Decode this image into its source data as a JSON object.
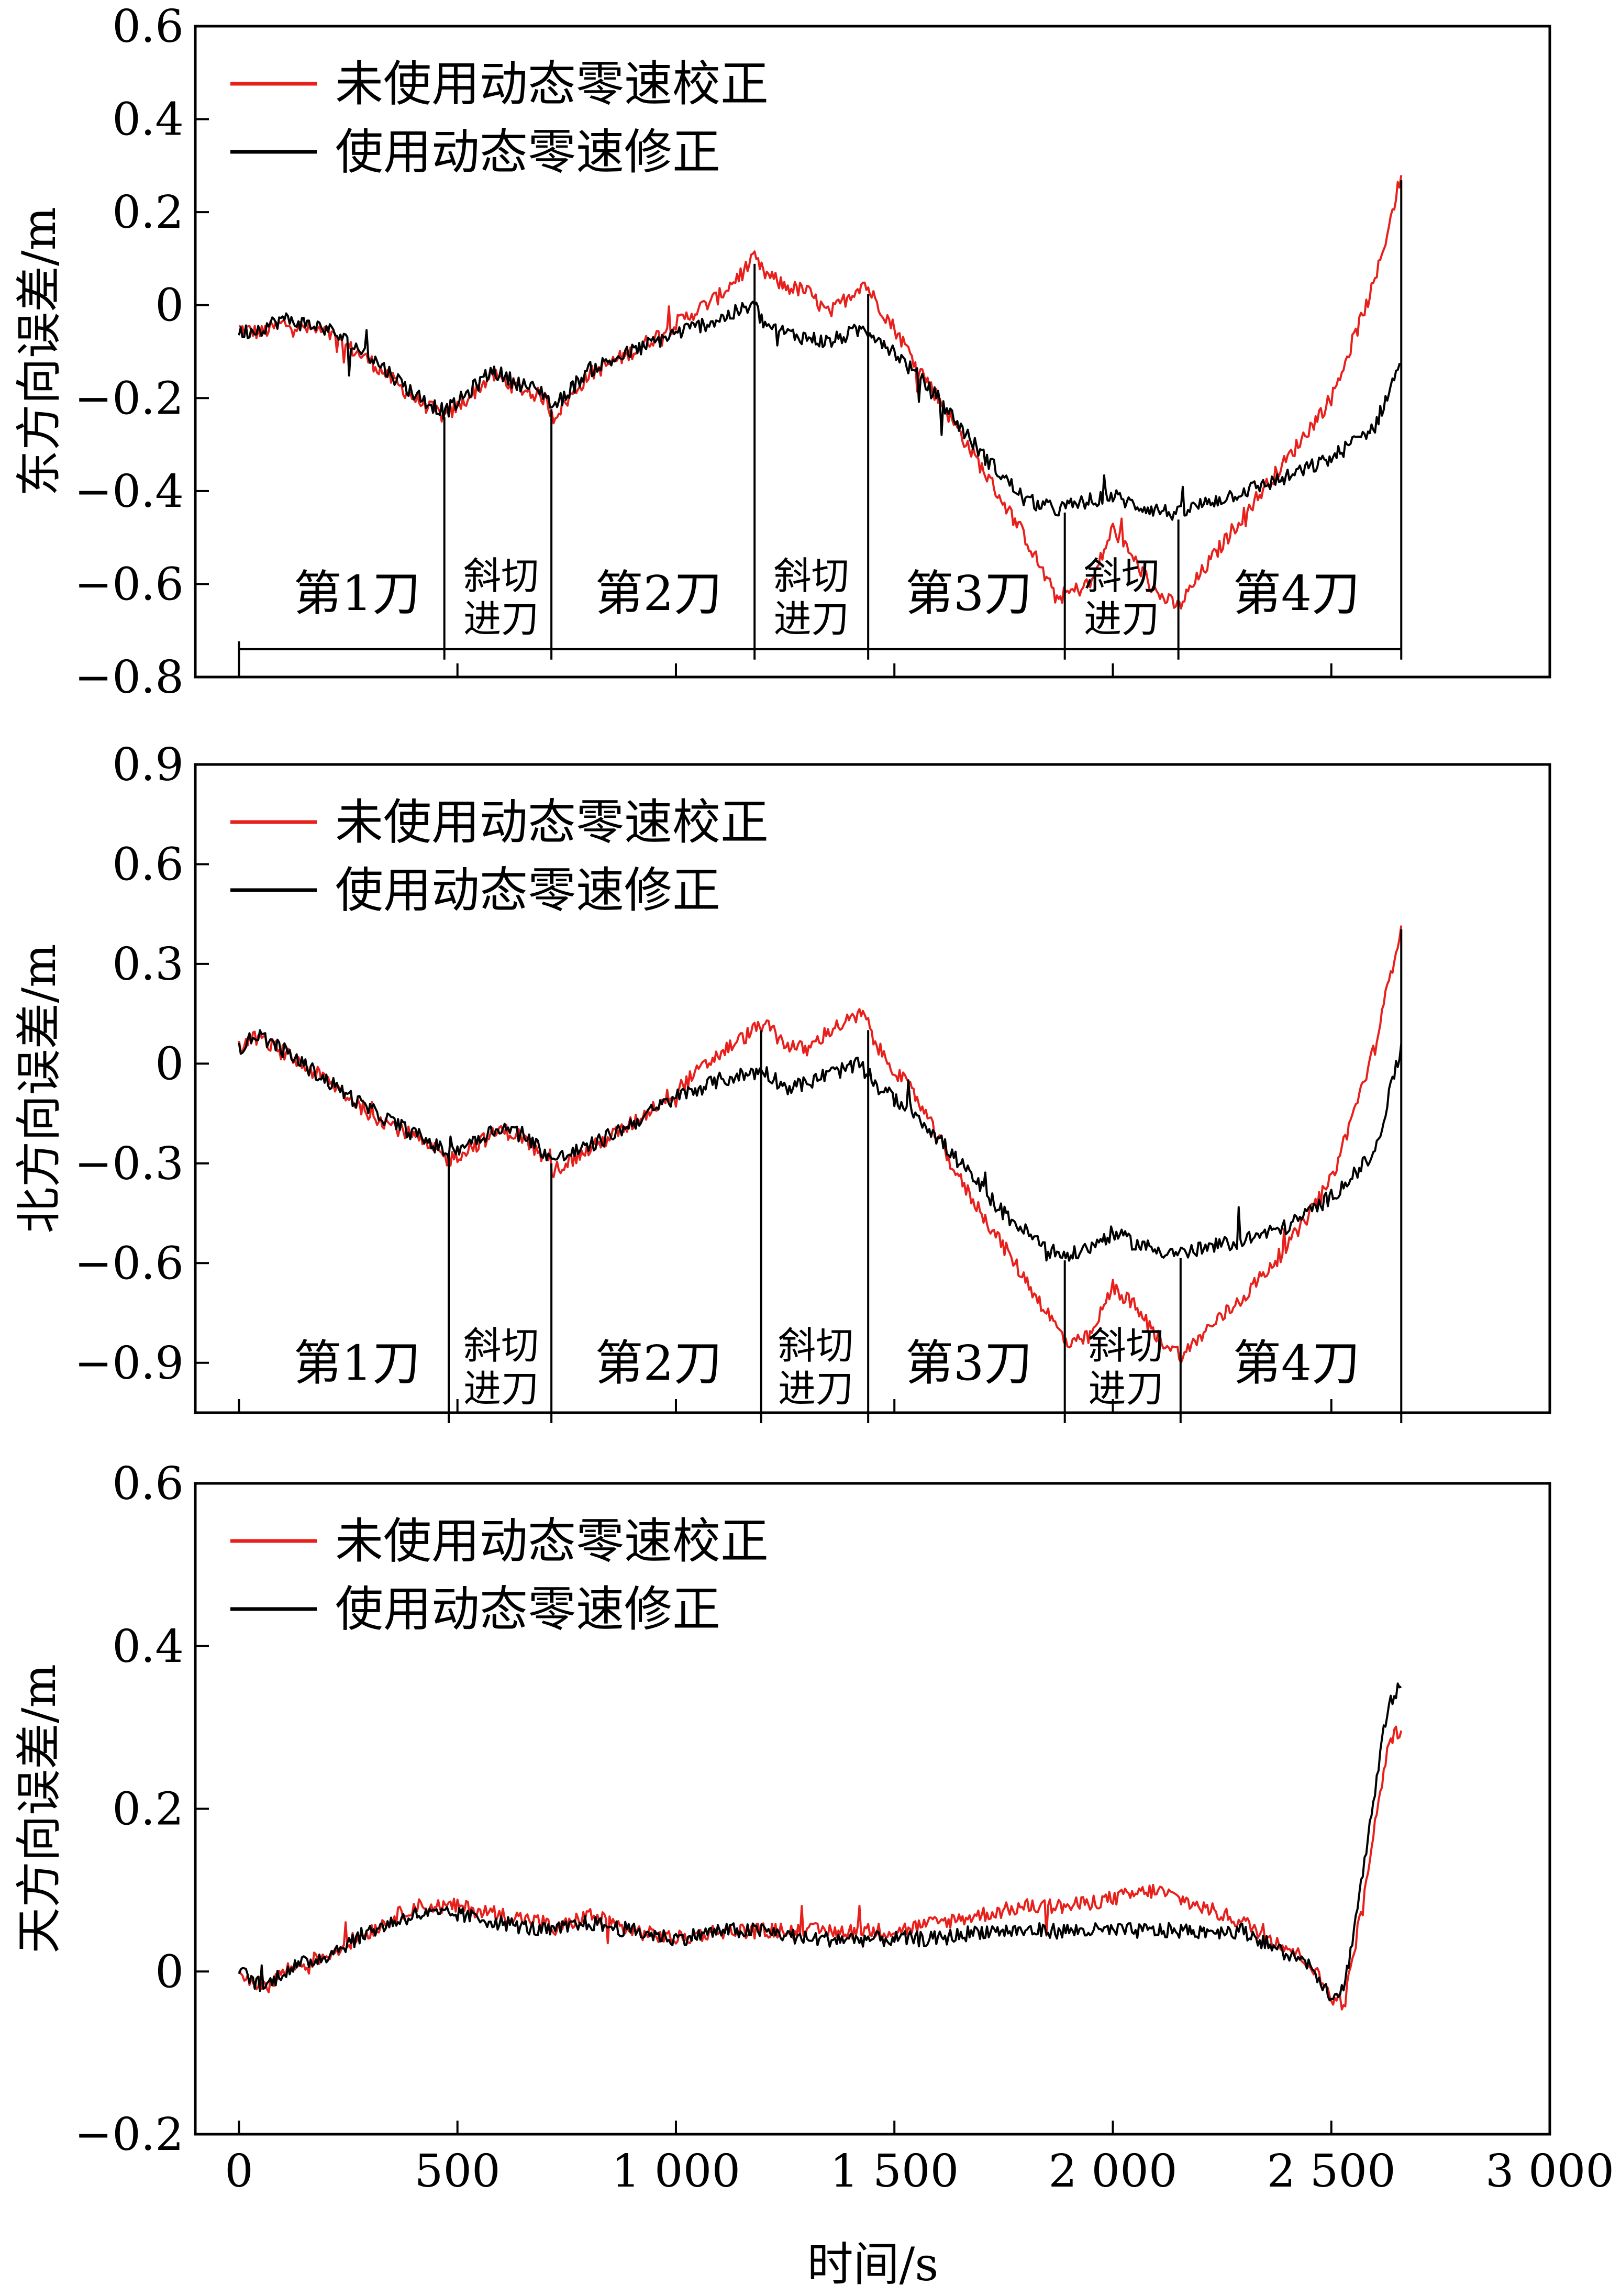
{
  "x_axis": {
    "label": "时间/s",
    "range": [
      -100,
      3000
    ],
    "ticks": [
      0,
      500,
      1000,
      1500,
      2000,
      2500,
      3000
    ],
    "tick_labels": [
      "0",
      "500",
      "1 000",
      "1 500",
      "2 000",
      "2 500",
      "3 000"
    ]
  },
  "legend": {
    "placement": "top-left",
    "items": [
      {
        "label": "未使用动态零速校正",
        "color": "#e8201c"
      },
      {
        "label": "使用动态零速修正",
        "color": "#000000"
      }
    ]
  },
  "chart_data": [
    {
      "type": "line",
      "ylabel": "东方向误差/m",
      "ylim": [
        -0.8,
        0.6
      ],
      "yticks": [
        -0.8,
        -0.6,
        -0.4,
        -0.2,
        0,
        0.2,
        0.4,
        0.6
      ],
      "ytick_labels": [
        "−0.8",
        "−0.6",
        "−0.4",
        "−0.2",
        "0",
        "0.2",
        "0.4",
        "0.6"
      ],
      "series": [
        {
          "name": "未使用动态零速校正",
          "color": "#e8201c",
          "x": [
            0,
            50,
            100,
            200,
            300,
            400,
            470,
            500,
            580,
            620,
            700,
            720,
            800,
            900,
            1000,
            1100,
            1180,
            1200,
            1250,
            1300,
            1350,
            1430,
            1450,
            1500,
            1600,
            1700,
            1800,
            1870,
            1950,
            2000,
            2050,
            2100,
            2150,
            2200,
            2300,
            2400,
            2500,
            2600,
            2660
          ],
          "y": [
            -0.05,
            -0.06,
            -0.04,
            -0.06,
            -0.12,
            -0.2,
            -0.24,
            -0.22,
            -0.15,
            -0.17,
            -0.2,
            -0.24,
            -0.15,
            -0.1,
            -0.04,
            0.02,
            0.1,
            0.07,
            0.04,
            0.03,
            -0.02,
            0.05,
            0.02,
            -0.05,
            -0.2,
            -0.35,
            -0.5,
            -0.63,
            -0.6,
            -0.48,
            -0.55,
            -0.62,
            -0.65,
            -0.58,
            -0.45,
            -0.33,
            -0.2,
            0.05,
            0.28
          ]
        },
        {
          "name": "使用动态零速修正",
          "color": "#000000",
          "x": [
            0,
            50,
            100,
            200,
            300,
            400,
            470,
            500,
            580,
            620,
            700,
            720,
            800,
            900,
            1000,
            1100,
            1180,
            1200,
            1250,
            1300,
            1350,
            1430,
            1450,
            1500,
            1600,
            1700,
            1800,
            1870,
            1950,
            2000,
            2050,
            2100,
            2150,
            2200,
            2300,
            2400,
            2500,
            2600,
            2660
          ],
          "y": [
            -0.06,
            -0.05,
            -0.03,
            -0.05,
            -0.11,
            -0.19,
            -0.23,
            -0.21,
            -0.14,
            -0.16,
            -0.19,
            -0.22,
            -0.14,
            -0.1,
            -0.06,
            -0.03,
            0.0,
            -0.04,
            -0.06,
            -0.07,
            -0.08,
            -0.05,
            -0.06,
            -0.1,
            -0.2,
            -0.32,
            -0.42,
            -0.44,
            -0.42,
            -0.41,
            -0.43,
            -0.44,
            -0.45,
            -0.43,
            -0.4,
            -0.37,
            -0.33,
            -0.26,
            -0.12
          ]
        }
      ],
      "phase_boundaries": [
        470,
        715,
        1180,
        1440,
        1890,
        2150,
        2660
      ],
      "phase_labels": [
        {
          "lines": [
            "第1刀"
          ],
          "x": 270,
          "y": -0.62
        },
        {
          "lines": [
            "斜切",
            "进刀"
          ],
          "x": 600,
          "y": -0.62
        },
        {
          "lines": [
            "第2刀"
          ],
          "x": 960,
          "y": -0.62
        },
        {
          "lines": [
            "斜切",
            "进刀"
          ],
          "x": 1310,
          "y": -0.62
        },
        {
          "lines": [
            "第3刀"
          ],
          "x": 1670,
          "y": -0.62
        },
        {
          "lines": [
            "斜切",
            "进刀"
          ],
          "x": 2020,
          "y": -0.62
        },
        {
          "lines": [
            "第4刀"
          ],
          "x": 2420,
          "y": -0.62
        }
      ],
      "baseline_y": -0.74
    },
    {
      "type": "line",
      "ylabel": "北方向误差/m",
      "ylim": [
        -1.05,
        0.9
      ],
      "yticks": [
        -0.9,
        -0.6,
        -0.3,
        0,
        0.3,
        0.6,
        0.9
      ],
      "ytick_labels": [
        "−0.9",
        "−0.6",
        "−0.3",
        "0",
        "0.3",
        "0.6",
        "0.9"
      ],
      "series": [
        {
          "name": "未使用动态零速校正",
          "color": "#e8201c",
          "x": [
            0,
            40,
            80,
            200,
            300,
            400,
            480,
            520,
            600,
            650,
            720,
            800,
            900,
            1000,
            1100,
            1200,
            1250,
            1300,
            1350,
            1430,
            1460,
            1550,
            1650,
            1750,
            1850,
            1900,
            1950,
            2000,
            2050,
            2100,
            2160,
            2200,
            2300,
            2400,
            2500,
            2600,
            2660
          ],
          "y": [
            0.05,
            0.08,
            0.05,
            -0.05,
            -0.15,
            -0.22,
            -0.29,
            -0.26,
            -0.2,
            -0.22,
            -0.32,
            -0.26,
            -0.18,
            -0.08,
            0.03,
            0.12,
            0.06,
            0.04,
            0.1,
            0.15,
            0.05,
            -0.1,
            -0.35,
            -0.55,
            -0.75,
            -0.85,
            -0.82,
            -0.67,
            -0.73,
            -0.82,
            -0.88,
            -0.82,
            -0.7,
            -0.55,
            -0.35,
            0.05,
            0.42
          ]
        },
        {
          "name": "使用动态零速修正",
          "color": "#000000",
          "x": [
            0,
            40,
            80,
            200,
            300,
            400,
            480,
            520,
            600,
            650,
            720,
            800,
            900,
            1000,
            1100,
            1200,
            1250,
            1300,
            1350,
            1430,
            1460,
            1550,
            1650,
            1750,
            1850,
            1900,
            1950,
            2000,
            2050,
            2100,
            2160,
            2200,
            2300,
            2400,
            2500,
            2600,
            2660
          ],
          "y": [
            0.04,
            0.09,
            0.06,
            -0.05,
            -0.14,
            -0.21,
            -0.27,
            -0.24,
            -0.19,
            -0.21,
            -0.29,
            -0.25,
            -0.18,
            -0.1,
            -0.05,
            -0.02,
            -0.07,
            -0.06,
            -0.03,
            0.0,
            -0.07,
            -0.15,
            -0.3,
            -0.45,
            -0.56,
            -0.58,
            -0.55,
            -0.51,
            -0.54,
            -0.56,
            -0.57,
            -0.56,
            -0.53,
            -0.49,
            -0.4,
            -0.27,
            0.05
          ]
        }
      ],
      "phase_boundaries": [
        480,
        715,
        1195,
        1440,
        1890,
        2155,
        2660
      ],
      "phase_labels": [
        {
          "lines": [
            "第1刀"
          ],
          "x": 270,
          "y": -0.9
        },
        {
          "lines": [
            "斜切",
            "进刀"
          ],
          "x": 600,
          "y": -0.9
        },
        {
          "lines": [
            "第2刀"
          ],
          "x": 960,
          "y": -0.9
        },
        {
          "lines": [
            "斜切",
            "进刀"
          ],
          "x": 1320,
          "y": -0.9
        },
        {
          "lines": [
            "第3刀"
          ],
          "x": 1670,
          "y": -0.9
        },
        {
          "lines": [
            "斜切",
            "进刀"
          ],
          "x": 2030,
          "y": -0.9
        },
        {
          "lines": [
            "第4刀"
          ],
          "x": 2420,
          "y": -0.9
        }
      ],
      "baseline_y": -1.05
    },
    {
      "type": "line",
      "ylabel": "天方向误差/m",
      "ylim": [
        -0.2,
        0.6
      ],
      "yticks": [
        -0.2,
        0,
        0.2,
        0.4,
        0.6
      ],
      "ytick_labels": [
        "−0.2",
        "0",
        "0.2",
        "0.4",
        "0.6"
      ],
      "series": [
        {
          "name": "未使用动态零速校正",
          "color": "#e8201c",
          "x": [
            0,
            60,
            100,
            200,
            300,
            400,
            500,
            600,
            700,
            720,
            800,
            900,
            1000,
            1100,
            1200,
            1300,
            1400,
            1500,
            1600,
            1700,
            1800,
            1900,
            2000,
            2100,
            2200,
            2300,
            2400,
            2450,
            2500,
            2530,
            2560,
            2600,
            2630,
            2660
          ],
          "y": [
            0.0,
            -0.02,
            0.0,
            0.02,
            0.05,
            0.08,
            0.08,
            0.07,
            0.06,
            0.05,
            0.07,
            0.05,
            0.04,
            0.05,
            0.05,
            0.05,
            0.05,
            0.05,
            0.06,
            0.07,
            0.08,
            0.08,
            0.09,
            0.1,
            0.08,
            0.06,
            0.03,
            0.01,
            -0.03,
            -0.04,
            0.05,
            0.18,
            0.28,
            0.3
          ]
        },
        {
          "name": "使用动态零速修正",
          "color": "#000000",
          "x": [
            0,
            60,
            100,
            200,
            300,
            400,
            500,
            600,
            700,
            720,
            800,
            900,
            1000,
            1100,
            1200,
            1300,
            1400,
            1500,
            1600,
            1700,
            1800,
            1900,
            2000,
            2100,
            2200,
            2300,
            2400,
            2450,
            2500,
            2530,
            2560,
            2600,
            2630,
            2660
          ],
          "y": [
            0.0,
            -0.02,
            0.0,
            0.02,
            0.05,
            0.07,
            0.07,
            0.06,
            0.05,
            0.05,
            0.06,
            0.05,
            0.04,
            0.05,
            0.05,
            0.04,
            0.04,
            0.04,
            0.04,
            0.05,
            0.05,
            0.05,
            0.05,
            0.05,
            0.05,
            0.05,
            0.02,
            0.01,
            -0.03,
            -0.02,
            0.08,
            0.22,
            0.33,
            0.35
          ]
        }
      ]
    }
  ]
}
